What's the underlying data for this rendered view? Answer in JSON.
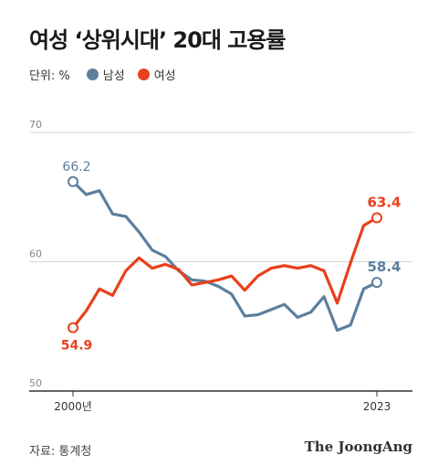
{
  "title": "여성 ‘상위시대’ 20대 고용률",
  "legend": {
    "unit_label": "단위: %",
    "items": [
      {
        "name": "남성",
        "color": "#5c7f9e"
      },
      {
        "name": "여성",
        "color": "#e8401c"
      }
    ]
  },
  "source": "자료: 통계청",
  "brand": "The JoongAng",
  "chart_data": {
    "type": "line",
    "x": [
      2000,
      2001,
      2002,
      2003,
      2004,
      2005,
      2006,
      2007,
      2008,
      2009,
      2010,
      2011,
      2012,
      2013,
      2014,
      2015,
      2016,
      2017,
      2018,
      2019,
      2020,
      2021,
      2022,
      2023
    ],
    "x_tick_labels": [
      {
        "x": 2000,
        "label": "2000년"
      },
      {
        "x": 2023,
        "label": "2023"
      }
    ],
    "ylim": [
      50,
      70
    ],
    "yticks": [
      50,
      60,
      70
    ],
    "series": [
      {
        "name": "남성",
        "color": "#5c7f9e",
        "values": [
          66.2,
          65.2,
          65.5,
          63.7,
          63.5,
          62.3,
          60.9,
          60.4,
          59.3,
          58.6,
          58.5,
          58.1,
          57.5,
          55.8,
          55.9,
          56.3,
          56.7,
          55.7,
          56.1,
          57.3,
          54.7,
          55.1,
          57.9,
          58.4
        ],
        "end_labels": {
          "start": "66.2",
          "end": "58.4"
        }
      },
      {
        "name": "여성",
        "color": "#e8401c",
        "values": [
          54.9,
          56.2,
          57.9,
          57.4,
          59.3,
          60.3,
          59.5,
          59.8,
          59.4,
          58.2,
          58.4,
          58.6,
          58.9,
          57.8,
          58.9,
          59.5,
          59.7,
          59.5,
          59.7,
          59.3,
          56.8,
          59.9,
          62.8,
          63.4
        ],
        "end_labels": {
          "start": "54.9",
          "end": "63.4"
        }
      }
    ],
    "grid": true
  }
}
